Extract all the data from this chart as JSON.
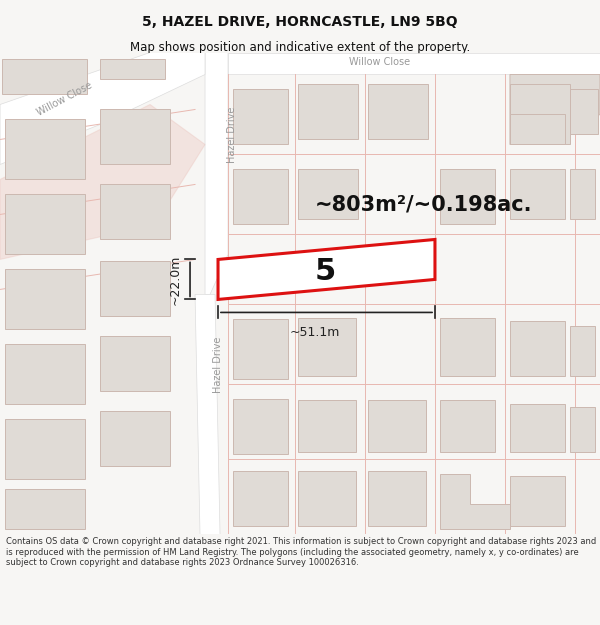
{
  "title": "5, HAZEL DRIVE, HORNCASTLE, LN9 5BQ",
  "subtitle": "Map shows position and indicative extent of the property.",
  "area_text": "~803m²/~0.198ac.",
  "plot_number": "5",
  "dim_width": "~51.1m",
  "dim_height": "~22.0m",
  "footer": "Contains OS data © Crown copyright and database right 2021. This information is subject to Crown copyright and database rights 2023 and is reproduced with the permission of HM Land Registry. The polygons (including the associated geometry, namely x, y co-ordinates) are subject to Crown copyright and database rights 2023 Ordnance Survey 100026316.",
  "bg_color": "#f7f6f4",
  "map_bg": "#f7f6f4",
  "road_color": "#ffffff",
  "plot_fill": "#ffffff",
  "plot_border": "#dd1111",
  "plot_border_lw": 2.2,
  "building_fill": "#e0dbd6",
  "building_stroke": "#ccb8b0",
  "plot_outline_color": "#e8b8b0",
  "road_label_color": "#999999",
  "text_color": "#111111",
  "footer_color": "#333333",
  "dim_color": "#222222",
  "title_fontsize": 10,
  "subtitle_fontsize": 8.5,
  "area_fontsize": 15,
  "plot_num_fontsize": 22,
  "dim_fontsize": 9,
  "road_label_fontsize": 7
}
